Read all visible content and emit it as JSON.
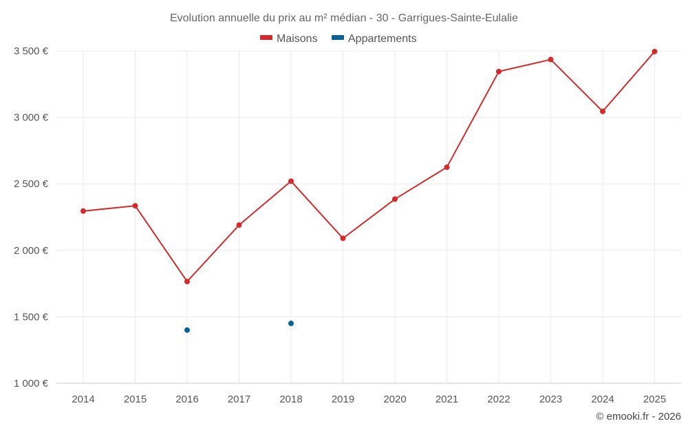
{
  "chart_data": {
    "type": "line",
    "title": "Evolution annuelle du prix au m² médian - 30 - Garrigues-Sainte-Eulalie",
    "categories": [
      "2014",
      "2015",
      "2016",
      "2017",
      "2018",
      "2019",
      "2020",
      "2021",
      "2022",
      "2023",
      "2024",
      "2025"
    ],
    "series": [
      {
        "name": "Maisons",
        "color": "#d42a2a",
        "style": "line-with-markers",
        "values": [
          2295,
          2335,
          1765,
          2190,
          2520,
          2090,
          2385,
          2625,
          3345,
          3435,
          3045,
          3495
        ]
      },
      {
        "name": "Appartements",
        "color": "#0a6196",
        "style": "markers-only",
        "values": [
          null,
          null,
          1400,
          null,
          1450,
          null,
          null,
          null,
          null,
          null,
          null,
          null
        ]
      }
    ],
    "ylim": [
      1000,
      3500
    ],
    "yticks": [
      1000,
      1500,
      2000,
      2500,
      3000,
      3500
    ],
    "ytick_labels": [
      "1 000 €",
      "1 500 €",
      "2 000 €",
      "2 500 €",
      "3 000 €",
      "3 500 €"
    ],
    "xlabel": "",
    "ylabel": "",
    "grid": true,
    "legend_position": "top-center"
  },
  "credit": "© emooki.fr - 2026"
}
